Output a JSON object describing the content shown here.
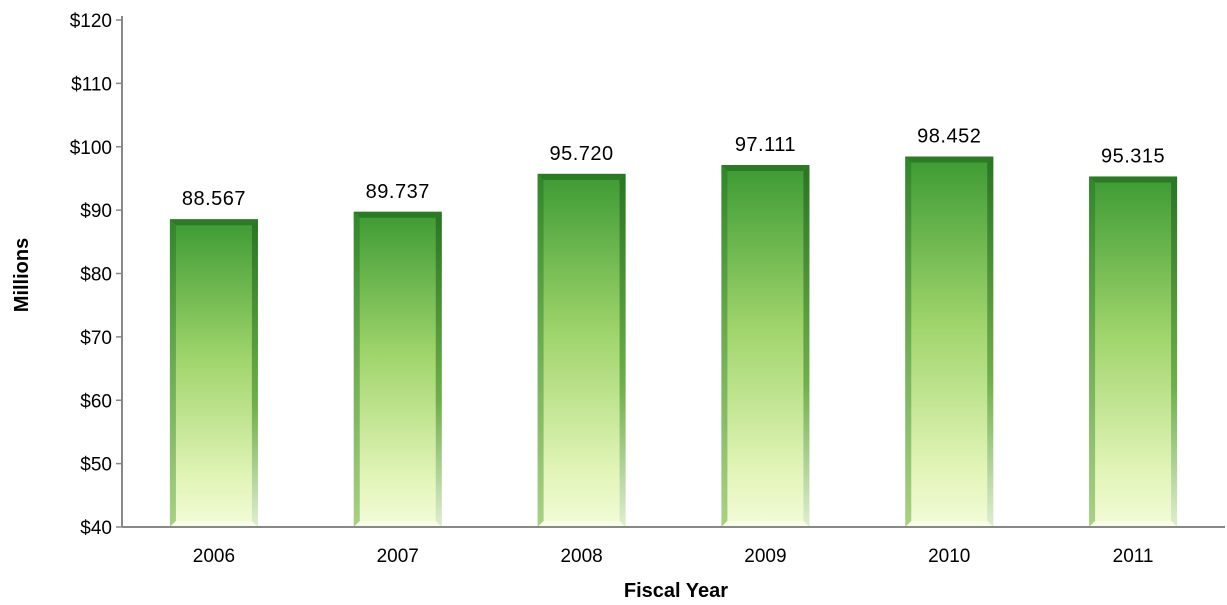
{
  "chart_data": {
    "type": "bar",
    "categories": [
      "2006",
      "2007",
      "2008",
      "2009",
      "2010",
      "2011"
    ],
    "values": [
      88.567,
      89.737,
      95.72,
      97.111,
      98.452,
      95.315
    ],
    "value_labels": [
      "88.567",
      "89.737",
      "95.720",
      "97.111",
      "98.452",
      "95.315"
    ],
    "xlabel": "Fiscal Year",
    "ylabel": "Millions",
    "ylim": [
      40,
      120
    ],
    "yticks": [
      40,
      50,
      60,
      70,
      80,
      90,
      100,
      110,
      120
    ],
    "ytick_labels": [
      "$40",
      "$50",
      "$60",
      "$70",
      "$80",
      "$90",
      "$100",
      "$110",
      "$120"
    ],
    "grid": false,
    "bar_color": "#3d9a34",
    "bar_highlight_color": "#eefad0"
  }
}
